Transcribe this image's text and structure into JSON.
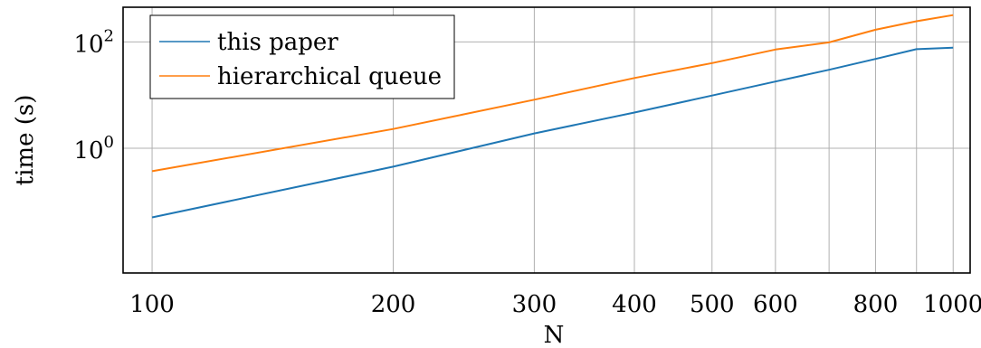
{
  "chart_data": {
    "type": "line",
    "title": "",
    "xlabel": "N",
    "ylabel": "time (s)",
    "x_scale": "log",
    "y_scale": "log",
    "xlim": [
      92,
      1050
    ],
    "ylim": [
      0.0045,
      450
    ],
    "grid": true,
    "legend_position": "top-left",
    "x_ticks": [
      100,
      200,
      300,
      400,
      500,
      600,
      700,
      800,
      900,
      1000
    ],
    "x_tick_labels": [
      "100",
      "200",
      "300",
      "400",
      "500",
      "600",
      "",
      "800",
      "",
      "1000"
    ],
    "y_ticks": [
      1,
      100
    ],
    "y_tick_labels": [
      {
        "base": "10",
        "exp": "0"
      },
      {
        "base": "10",
        "exp": "2"
      }
    ],
    "x": [
      100,
      200,
      300,
      400,
      500,
      600,
      700,
      800,
      900,
      1000
    ],
    "series": [
      {
        "name": "this paper",
        "color": "#1f77b4",
        "values": [
          0.05,
          0.45,
          1.9,
          4.7,
          9.8,
          18,
          30,
          48,
          73,
          78
        ]
      },
      {
        "name": "hierarchical queue",
        "color": "#ff7f0e",
        "values": [
          0.37,
          2.3,
          8.2,
          21,
          40,
          72,
          98,
          170,
          245,
          320
        ]
      }
    ]
  }
}
